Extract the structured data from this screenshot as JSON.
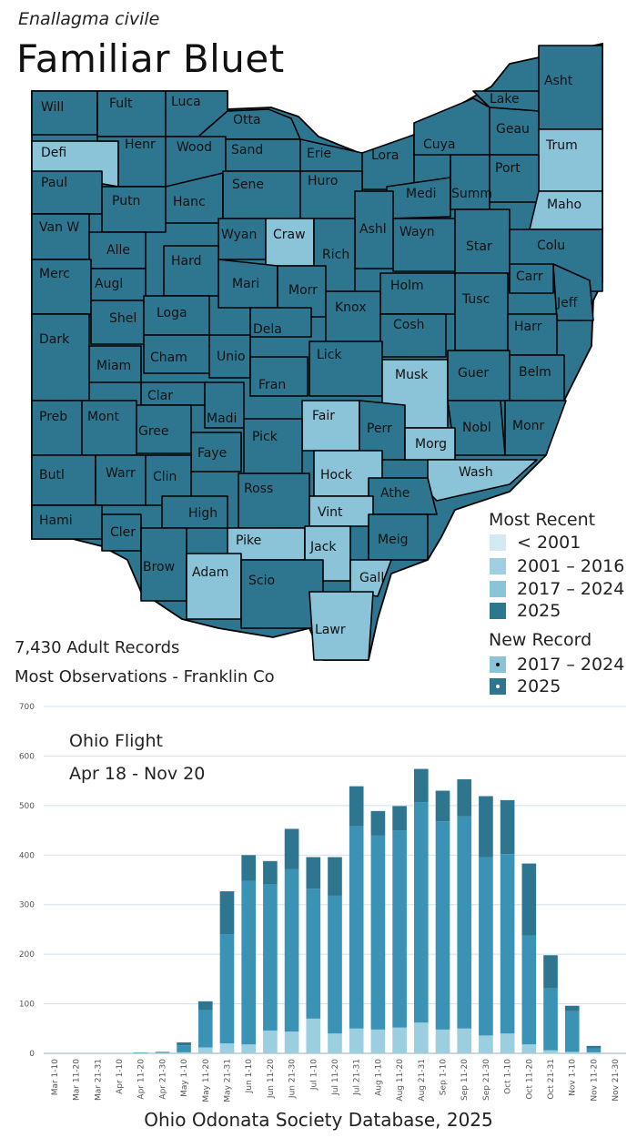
{
  "header": {
    "scientific_name": "Enallagma civile",
    "common_name": "Familiar Bluet"
  },
  "colors": {
    "pre2001": "#d4eaf2",
    "y2001_2016": "#9fcfe0",
    "y2017_2024": "#8bc3d9",
    "y2025": "#2e7690",
    "bar_light": "#9bcfe0",
    "bar_mid": "#3a93b5",
    "bar_dark": "#2e7690"
  },
  "legend": {
    "most_recent_title": "Most Recent",
    "most_recent_items": [
      {
        "label": "< 2001",
        "color_key": "pre2001"
      },
      {
        "label": "2001 – 2016",
        "color_key": "y2001_2016"
      },
      {
        "label": "2017 – 2024",
        "color_key": "y2017_2024"
      },
      {
        "label": "2025",
        "color_key": "y2025"
      }
    ],
    "new_record_title": "New Record",
    "new_record_items": [
      {
        "label": "2017 – 2024",
        "color_key": "y2017_2024"
      },
      {
        "label": "2025",
        "color_key": "y2025"
      }
    ]
  },
  "stats": {
    "records": "7,430 Adult Records",
    "most_observations": "Most Observations - Franklin Co"
  },
  "counties": [
    {
      "name": "Will",
      "status": "2025"
    },
    {
      "name": "Fult",
      "status": "2025"
    },
    {
      "name": "Luca",
      "status": "2025"
    },
    {
      "name": "Otta",
      "status": "2025"
    },
    {
      "name": "Lake",
      "status": "2025"
    },
    {
      "name": "Asht",
      "status": "2025"
    },
    {
      "name": "Defi",
      "status": "2017-2024"
    },
    {
      "name": "Henr",
      "status": "2025"
    },
    {
      "name": "Wood",
      "status": "2025"
    },
    {
      "name": "Sand",
      "status": "2025"
    },
    {
      "name": "Erie",
      "status": "2025"
    },
    {
      "name": "Lora",
      "status": "2025"
    },
    {
      "name": "Cuya",
      "status": "2025"
    },
    {
      "name": "Geau",
      "status": "2025"
    },
    {
      "name": "Trum",
      "status": "2017-2024"
    },
    {
      "name": "Paul",
      "status": "2025"
    },
    {
      "name": "Putn",
      "status": "2025"
    },
    {
      "name": "Hanc",
      "status": "2025"
    },
    {
      "name": "Sene",
      "status": "2025"
    },
    {
      "name": "Huro",
      "status": "2025"
    },
    {
      "name": "Medi",
      "status": "2025"
    },
    {
      "name": "Summ",
      "status": "2025"
    },
    {
      "name": "Port",
      "status": "2025"
    },
    {
      "name": "Maho",
      "status": "2017-2024"
    },
    {
      "name": "Van W",
      "status": "2025"
    },
    {
      "name": "Alle",
      "status": "2025"
    },
    {
      "name": "Wyan",
      "status": "2025"
    },
    {
      "name": "Craw",
      "status": "2017-2024"
    },
    {
      "name": "Ashl",
      "status": "2025"
    },
    {
      "name": "Wayn",
      "status": "2025"
    },
    {
      "name": "Star",
      "status": "2025"
    },
    {
      "name": "Colu",
      "status": "2025"
    },
    {
      "name": "Hard",
      "status": "2025"
    },
    {
      "name": "Rich",
      "status": "2025"
    },
    {
      "name": "Merc",
      "status": "2025"
    },
    {
      "name": "Augl",
      "status": "2025"
    },
    {
      "name": "Mari",
      "status": "2025"
    },
    {
      "name": "Morr",
      "status": "2025"
    },
    {
      "name": "Holm",
      "status": "2025"
    },
    {
      "name": "Carr",
      "status": "2025"
    },
    {
      "name": "Knox",
      "status": "2025"
    },
    {
      "name": "Tusc",
      "status": "2025"
    },
    {
      "name": "Jeff",
      "status": "2025"
    },
    {
      "name": "Shel",
      "status": "2025"
    },
    {
      "name": "Loga",
      "status": "2025"
    },
    {
      "name": "Dela",
      "status": "2025"
    },
    {
      "name": "Cosh",
      "status": "2025"
    },
    {
      "name": "Harr",
      "status": "2025"
    },
    {
      "name": "Dark",
      "status": "2025"
    },
    {
      "name": "Cham",
      "status": "2025"
    },
    {
      "name": "Unio",
      "status": "2025"
    },
    {
      "name": "Lick",
      "status": "2025"
    },
    {
      "name": "Musk",
      "status": "2017-2024"
    },
    {
      "name": "Guer",
      "status": "2025"
    },
    {
      "name": "Belm",
      "status": "2025"
    },
    {
      "name": "Miam",
      "status": "2025"
    },
    {
      "name": "Fran",
      "status": "2025"
    },
    {
      "name": "Clar",
      "status": "2025"
    },
    {
      "name": "Fair",
      "status": "2017-2024"
    },
    {
      "name": "Perr",
      "status": "2025"
    },
    {
      "name": "Nobl",
      "status": "2025"
    },
    {
      "name": "Monr",
      "status": "2025"
    },
    {
      "name": "Preb",
      "status": "2025"
    },
    {
      "name": "Mont",
      "status": "2025"
    },
    {
      "name": "Gree",
      "status": "2025"
    },
    {
      "name": "Madi",
      "status": "2025"
    },
    {
      "name": "Pick",
      "status": "2025"
    },
    {
      "name": "Morg",
      "status": "2017-2024"
    },
    {
      "name": "Faye",
      "status": "2025"
    },
    {
      "name": "Wash",
      "status": "2017-2024"
    },
    {
      "name": "Butl",
      "status": "2025"
    },
    {
      "name": "Warr",
      "status": "2025"
    },
    {
      "name": "Clin",
      "status": "2025"
    },
    {
      "name": "Hock",
      "status": "2017-2024"
    },
    {
      "name": "Ross",
      "status": "2025"
    },
    {
      "name": "Athe",
      "status": "2025"
    },
    {
      "name": "Vint",
      "status": "2017-2024"
    },
    {
      "name": "Hami",
      "status": "2025"
    },
    {
      "name": "High",
      "status": "2025"
    },
    {
      "name": "Cler",
      "status": "2025"
    },
    {
      "name": "Pike",
      "status": "2017-2024"
    },
    {
      "name": "Jack",
      "status": "2017-2024"
    },
    {
      "name": "Meig",
      "status": "2025"
    },
    {
      "name": "Brow",
      "status": "2025"
    },
    {
      "name": "Adam",
      "status": "2017-2024"
    },
    {
      "name": "Scio",
      "status": "2025"
    },
    {
      "name": "Gall",
      "status": "2017-2024"
    },
    {
      "name": "Lawr",
      "status": "2017-2024"
    }
  ],
  "flight": {
    "title": "Ohio Flight",
    "range": "Apr 18 - Nov 20"
  },
  "chart_data": {
    "type": "bar",
    "stacked": true,
    "title": "Ohio Flight",
    "xlabel": "",
    "ylabel": "",
    "ylim": [
      0,
      700
    ],
    "yticks": [
      0,
      100,
      200,
      300,
      400,
      500,
      600,
      700
    ],
    "grid": true,
    "categories": [
      "Mar 1-10",
      "Mar 11-20",
      "Mar 21-31",
      "Apr 1-10",
      "Apr 11-20",
      "Apr 21-30",
      "May 1-10",
      "May 11-20",
      "May 21-31",
      "Jun 1-10",
      "Jun 11-20",
      "Jun 21-30",
      "Jul 1-10",
      "Jul 11-20",
      "Jul 21-31",
      "Aug 1-10",
      "Aug 11-20",
      "Aug 21-31",
      "Sep 1-10",
      "Sep 11-20",
      "Sep 21-30",
      "Oct 1-10",
      "Oct 11-20",
      "Oct 21-31",
      "Nov 1-10",
      "Nov 11-20",
      "Nov 21-30"
    ],
    "series": [
      {
        "name": "base",
        "values": [
          0,
          0,
          0,
          0,
          1,
          1,
          2,
          12,
          20,
          18,
          46,
          44,
          70,
          40,
          50,
          48,
          52,
          62,
          48,
          50,
          36,
          40,
          18,
          6,
          3,
          2,
          0
        ]
      },
      {
        "name": "middle",
        "values": [
          0,
          0,
          0,
          0,
          1,
          1,
          14,
          75,
          220,
          330,
          295,
          328,
          262,
          278,
          408,
          392,
          398,
          445,
          420,
          428,
          360,
          362,
          220,
          125,
          82,
          8,
          0
        ]
      },
      {
        "name": "top",
        "values": [
          0,
          0,
          0,
          0,
          0,
          1,
          6,
          18,
          87,
          52,
          47,
          81,
          64,
          78,
          81,
          49,
          49,
          67,
          62,
          75,
          123,
          109,
          145,
          67,
          11,
          5,
          0
        ]
      }
    ],
    "totals": [
      0,
      0,
      0,
      0,
      2,
      3,
      22,
      105,
      327,
      400,
      388,
      453,
      396,
      396,
      539,
      489,
      499,
      574,
      530,
      553,
      519,
      511,
      383,
      198,
      96,
      15,
      0
    ]
  },
  "footer": "Ohio Odonata Society Database, 2025"
}
